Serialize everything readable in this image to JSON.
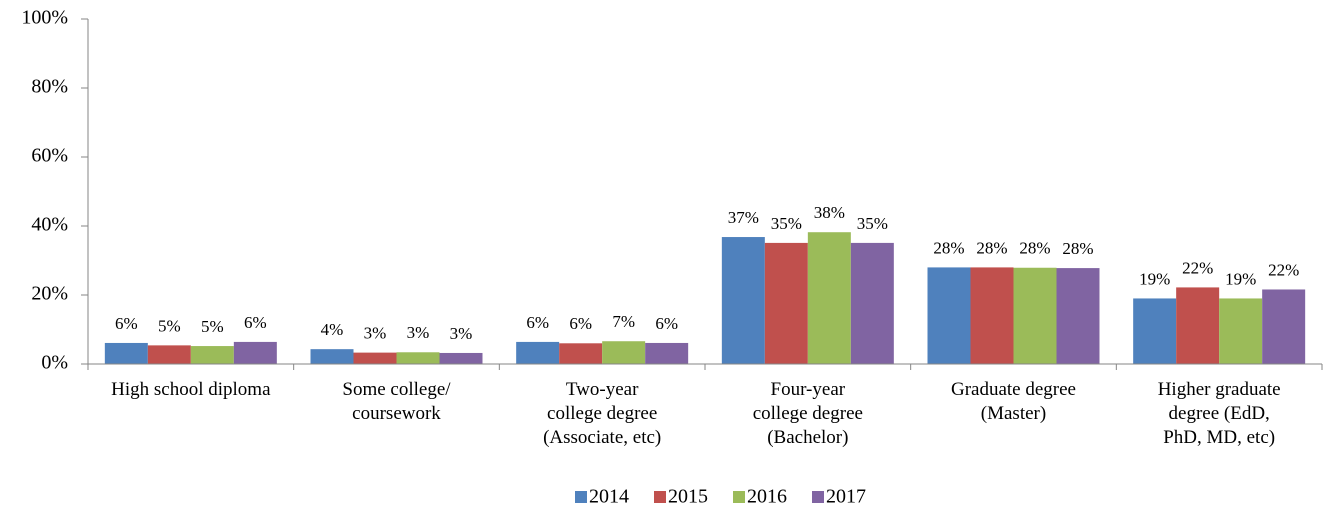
{
  "chart_data": {
    "type": "bar",
    "categories": [
      "High school diploma",
      "Some college/\ncoursework",
      "Two-year\ncollege degree\n(Associate, etc)",
      "Four-year\ncollege degree\n(Bachelor)",
      "Graduate degree\n(Master)",
      "Higher graduate\ndegree (EdD,\nPhD, MD, etc)"
    ],
    "series": [
      {
        "name": "2014",
        "color": "#4f81bd",
        "values": [
          6.1,
          4.3,
          6.4,
          36.8,
          28.0,
          19.0
        ],
        "value_labels": [
          "6%",
          "4%",
          "6%",
          "37%",
          "28%",
          "19%"
        ]
      },
      {
        "name": "2015",
        "color": "#c0504d",
        "values": [
          5.4,
          3.3,
          6.0,
          35.1,
          28.0,
          22.2
        ],
        "value_labels": [
          "5%",
          "3%",
          "6%",
          "35%",
          "28%",
          "22%"
        ]
      },
      {
        "name": "2016",
        "color": "#9bbb59",
        "values": [
          5.2,
          3.4,
          6.6,
          38.2,
          27.9,
          19.0
        ],
        "value_labels": [
          "5%",
          "3%",
          "7%",
          "38%",
          "28%",
          "19%"
        ]
      },
      {
        "name": "2017",
        "color": "#8064a2",
        "values": [
          6.4,
          3.2,
          6.1,
          35.1,
          27.8,
          21.6
        ],
        "value_labels": [
          "6%",
          "3%",
          "6%",
          "35%",
          "28%",
          "22%"
        ]
      }
    ],
    "ylim": [
      0,
      100
    ],
    "yticks": [
      {
        "value": 0,
        "label": "0%"
      },
      {
        "value": 20,
        "label": "20%"
      },
      {
        "value": 40,
        "label": "40%"
      },
      {
        "value": 60,
        "label": "60%"
      },
      {
        "value": 80,
        "label": "80%"
      },
      {
        "value": 100,
        "label": "100%"
      }
    ],
    "legend": "bottom"
  }
}
